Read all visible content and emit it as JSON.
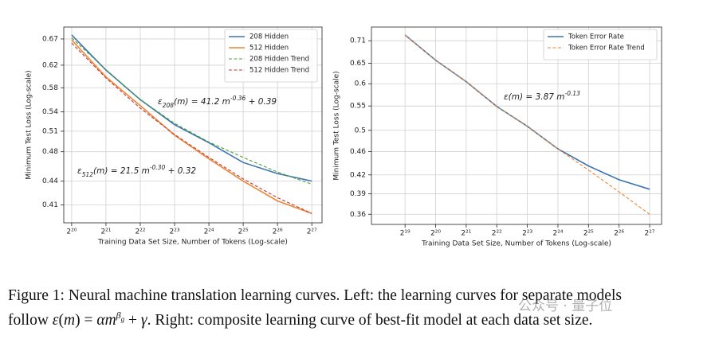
{
  "chart_data": [
    {
      "type": "line",
      "xlabel": "Training Data Set Size, Number of Tokens (Log-scale)",
      "ylabel": "Minimum Test Loss (Log-scale)",
      "xscale": "log",
      "yscale": "log",
      "grid": true,
      "legend": "upper right",
      "x": [
        1048576,
        2097152,
        4194304,
        8388608,
        16777216,
        33554432,
        67108864,
        134217728
      ],
      "xlim": [
        894000,
        165000000
      ],
      "xticks": [
        {
          "value": 1048576,
          "label": "2²⁰"
        },
        {
          "value": 2097152,
          "label": "2²¹"
        },
        {
          "value": 4194304,
          "label": "2²²"
        },
        {
          "value": 8388608,
          "label": "2²³"
        },
        {
          "value": 16777216,
          "label": "2²⁴"
        },
        {
          "value": 33554432,
          "label": "2²⁵"
        },
        {
          "value": 67108864,
          "label": "2²⁶"
        },
        {
          "value": 134217728,
          "label": "2²⁷"
        }
      ],
      "ylim": [
        0.389,
        0.694
      ],
      "yticks": [
        0.41,
        0.44,
        0.48,
        0.51,
        0.54,
        0.58,
        0.62,
        0.67
      ],
      "series": [
        {
          "name": "208 Hidden",
          "color": "#3b75af",
          "dashed": false,
          "values": [
            0.678,
            0.611,
            0.56,
            0.52,
            0.493,
            0.465,
            0.45,
            0.44
          ]
        },
        {
          "name": "512 Hidden",
          "color": "#ef8636",
          "dashed": false,
          "values": [
            0.668,
            0.599,
            0.55,
            0.504,
            0.47,
            0.44,
            0.415,
            0.4
          ]
        },
        {
          "name": "208 Hidden Trend",
          "color": "#519e3e",
          "dashed": true,
          "values": [
            0.672,
            0.612,
            0.56,
            0.522,
            0.494,
            0.472,
            0.452,
            0.436
          ]
        },
        {
          "name": "512 Hidden Trend",
          "color": "#c53a32",
          "dashed": true,
          "values": [
            0.662,
            0.597,
            0.546,
            0.505,
            0.472,
            0.443,
            0.419,
            0.4
          ]
        }
      ],
      "annotations": [
        [
          {
            "text": "ε"
          },
          {
            "text": "208",
            "shift": "sub"
          },
          {
            "text": "(m) = 41.2 m"
          },
          {
            "text": "-0.36",
            "shift": "super"
          },
          {
            "text": " + 0.39"
          }
        ],
        [
          {
            "text": "ε"
          },
          {
            "text": "512",
            "shift": "sub"
          },
          {
            "text": "(m) = 21.5 m"
          },
          {
            "text": "-0.30",
            "shift": "super"
          },
          {
            "text": " + 0.32"
          }
        ]
      ]
    },
    {
      "type": "line",
      "xlabel": "Training Data Set Size, Number of Tokens (Log-scale)",
      "ylabel": "Minimum Test Loss (Log-scale)",
      "xscale": "log",
      "yscale": "log",
      "grid": true,
      "legend": "upper right",
      "x": [
        524288,
        1048576,
        2097152,
        4194304,
        8388608,
        16777216,
        33554432,
        67108864,
        134217728
      ],
      "xlim": [
        244600,
        175900000
      ],
      "xticks": [
        {
          "value": 524288,
          "label": "2¹⁹"
        },
        {
          "value": 1048576,
          "label": "2²⁰"
        },
        {
          "value": 2097152,
          "label": "2²¹"
        },
        {
          "value": 4194304,
          "label": "2²²"
        },
        {
          "value": 8388608,
          "label": "2²³"
        },
        {
          "value": 16777216,
          "label": "2²⁴"
        },
        {
          "value": 33554432,
          "label": "2²⁵"
        },
        {
          "value": 67108864,
          "label": "2²⁶"
        },
        {
          "value": 134217728,
          "label": "2²⁷"
        }
      ],
      "ylim": [
        0.346,
        0.749
      ],
      "yticks": [
        0.36,
        0.39,
        0.42,
        0.46,
        0.5,
        0.55,
        0.6,
        0.65,
        0.71
      ],
      "series": [
        {
          "name": "Token Error Rate",
          "color": "#3b75af",
          "dashed": false,
          "values": [
            0.726,
            0.658,
            0.605,
            0.549,
            0.508,
            0.465,
            0.435,
            0.412,
            0.397
          ]
        },
        {
          "name": "Token Error Rate Trend",
          "color": "#ef8636",
          "dashed": true,
          "values": [
            0.726,
            0.658,
            0.605,
            0.549,
            0.508,
            0.465,
            0.428,
            0.393,
            0.36
          ]
        }
      ],
      "annotations": [
        [
          {
            "text": "ε(m) = 3.87 m"
          },
          {
            "text": "-0.13",
            "shift": "super"
          }
        ]
      ]
    }
  ],
  "caption": [
    [
      {
        "text": "Figure 1: Neural machine translation learning curves. Left: the learning curves for separate models"
      }
    ],
    [
      {
        "text": "follow "
      },
      {
        "text": "ε",
        "style": "italic"
      },
      {
        "text": "("
      },
      {
        "text": "m",
        "style": "italic"
      },
      {
        "text": ") = "
      },
      {
        "text": "αm",
        "style": "italic"
      },
      {
        "text": "β",
        "style": "sup"
      },
      {
        "text": "g",
        "style": "supsub"
      },
      {
        "text": " + "
      },
      {
        "text": "γ",
        "style": "italic"
      },
      {
        "text": ". Right: composite learning curve of best-fit model at each data set size."
      }
    ]
  ],
  "watermark": "公众号 · 量子位"
}
